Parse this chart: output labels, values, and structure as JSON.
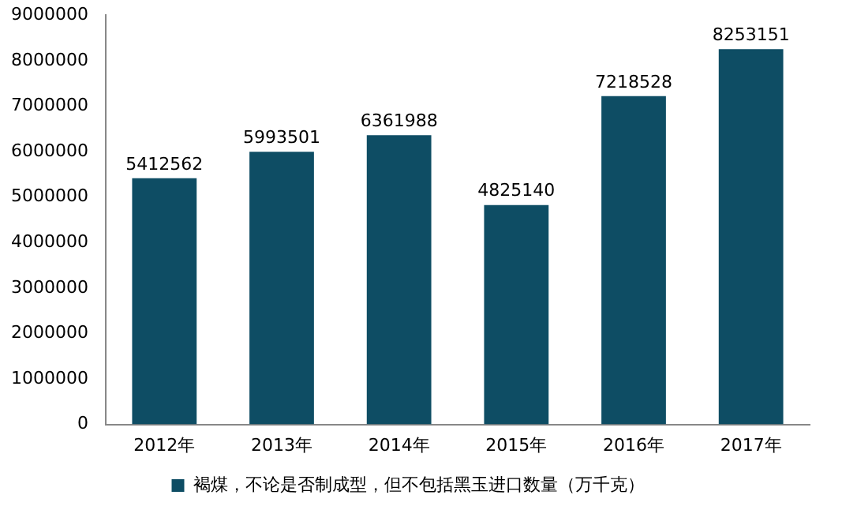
{
  "chart_data": {
    "type": "bar",
    "categories": [
      "2012年",
      "2013年",
      "2014年",
      "2015年",
      "2016年",
      "2017年"
    ],
    "series": [
      {
        "name": "褐煤，不论是否制成型，但不包括黑玉进口数量（万千克）",
        "color": "#0e4d64",
        "values": [
          5412562,
          5993501,
          6361988,
          4825140,
          7218528,
          8253151
        ]
      }
    ],
    "ylim": [
      0,
      9000000
    ],
    "yticks": [
      0,
      1000000,
      2000000,
      3000000,
      4000000,
      5000000,
      6000000,
      7000000,
      8000000,
      9000000
    ],
    "grid": false,
    "legend": "bottom",
    "data_labels": true
  }
}
